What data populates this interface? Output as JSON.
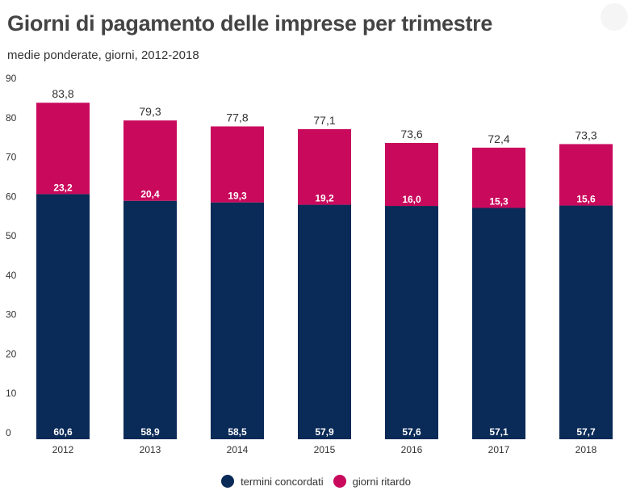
{
  "header": {
    "title": "Giorni di pagamento delle imprese per trimestre",
    "subtitle": "medie ponderate, giorni, 2012-2018"
  },
  "colors": {
    "termini": "#0a2a57",
    "ritardo": "#c9095c"
  },
  "legend": {
    "termini_label": "termini concordati",
    "ritardo_label": "giorni ritardo"
  },
  "chart_data": {
    "type": "bar",
    "stacked": true,
    "categories": [
      "2012",
      "2013",
      "2014",
      "2015",
      "2016",
      "2017",
      "2018"
    ],
    "series": [
      {
        "name": "termini concordati",
        "values": [
          60.6,
          58.9,
          58.5,
          57.9,
          57.6,
          57.1,
          57.7
        ],
        "labels": [
          "60,6",
          "58,9",
          "58,5",
          "57,9",
          "57,6",
          "57,1",
          "57,7"
        ]
      },
      {
        "name": "giorni ritardo",
        "values": [
          23.2,
          20.4,
          19.3,
          19.2,
          16.0,
          15.3,
          15.6
        ],
        "labels": [
          "23,2",
          "20,4",
          "19,3",
          "19,2",
          "16,0",
          "15,3",
          "15,6"
        ]
      }
    ],
    "totals": [
      83.8,
      79.3,
      77.8,
      77.1,
      73.6,
      72.4,
      73.3
    ],
    "total_labels": [
      "83,8",
      "79,3",
      "77,8",
      "77,1",
      "73,6",
      "72,4",
      "73,3"
    ],
    "ylim": [
      0,
      90
    ],
    "yticks": [
      "0",
      "10",
      "20",
      "30",
      "40",
      "50",
      "60",
      "70",
      "80",
      "90"
    ],
    "grid": false,
    "legend_position": "bottom-center"
  }
}
